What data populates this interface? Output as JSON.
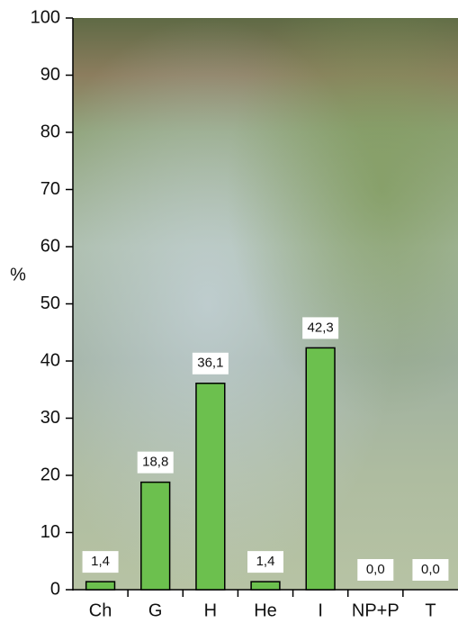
{
  "chart_data": {
    "type": "bar",
    "y_label": "%",
    "categories": [
      "Ch",
      "G",
      "H",
      "He",
      "I",
      "NP+P",
      "T"
    ],
    "values": [
      1.4,
      18.8,
      36.1,
      1.4,
      42.3,
      0.0,
      0.0
    ],
    "value_labels": [
      "1,4",
      "18,8",
      "36,1",
      "1,4",
      "42,3",
      "0,0",
      "0,0"
    ],
    "color": "#6cc04e",
    "ylim": [
      0,
      100
    ],
    "yticks": [
      0,
      10,
      20,
      30,
      40,
      50,
      60,
      70,
      80,
      90,
      100
    ]
  }
}
